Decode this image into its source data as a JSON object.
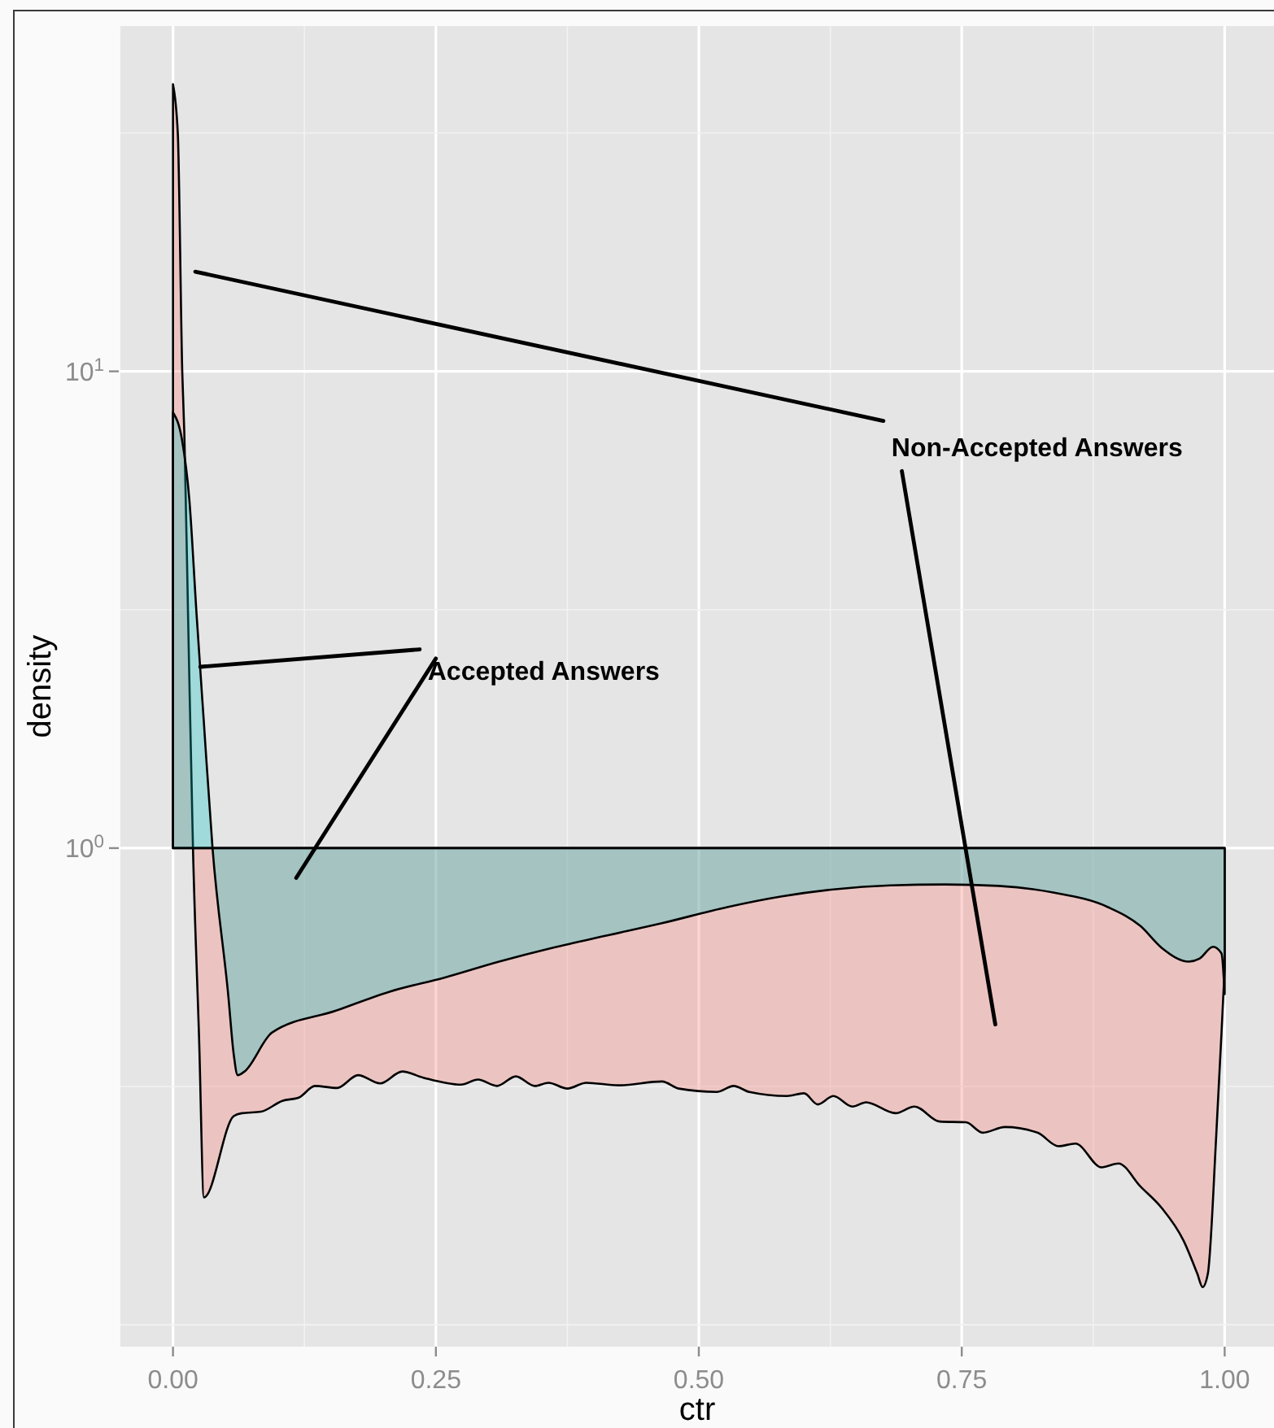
{
  "chart_data": {
    "type": "area",
    "xlabel": "ctr",
    "ylabel": "density",
    "log": "y",
    "grid": true,
    "xlim": [
      -0.05,
      1.05
    ],
    "xticks": [
      {
        "value": 0,
        "label": "0.00"
      },
      {
        "value": 0.25,
        "label": "0.25"
      },
      {
        "value": 0.5,
        "label": "0.50"
      },
      {
        "value": 0.75,
        "label": "0.75"
      },
      {
        "value": 1,
        "label": "1.00"
      }
    ],
    "ylim": [
      0.09,
      53
    ],
    "yticks": [
      {
        "value": 1,
        "label": "10$^{0}$"
      },
      {
        "value": 10,
        "label": "10$^{1}$"
      }
    ],
    "annotations": [
      "Non-Accepted Answers",
      {
        "text": "Accepted Answers",
        "x": 0.026,
        "y": 2.4
      }
    ],
    "series": [
      {
        "color": "#f8766d",
        "x": [
          0,
          0.0046,
          0.0088,
          0.0108,
          0.0147,
          0.019,
          0.0248,
          0.0294,
          0.0577,
          0.0655,
          0.0836,
          0.104,
          0.12,
          0.135,
          0.156,
          0.176,
          0.197,
          0.218,
          0.238,
          0.274,
          0.29,
          0.308,
          0.326,
          0.344,
          0.357,
          0.375,
          0.393,
          0.424,
          0.465,
          0.481,
          0.517,
          0.533,
          0.548,
          0.584,
          0.6,
          0.613,
          0.628,
          0.646,
          0.659,
          0.687,
          0.705,
          0.729,
          0.754,
          0.77,
          0.791,
          0.822,
          0.842,
          0.858,
          0.883,
          0.899,
          0.92,
          0.94,
          0.961,
          0.974,
          0.979,
          0.984,
          0.992,
          0.997,
          1,
          1
        ],
        "values": [
          40,
          31.5,
          10,
          7.4,
          2.8,
          1,
          0.4,
          0.185,
          0.274,
          0.278,
          0.28,
          0.295,
          0.3,
          0.317,
          0.314,
          0.334,
          0.321,
          0.34,
          0.33,
          0.319,
          0.327,
          0.317,
          0.332,
          0.317,
          0.322,
          0.313,
          0.322,
          0.318,
          0.324,
          0.313,
          0.308,
          0.317,
          0.308,
          0.302,
          0.306,
          0.29,
          0.302,
          0.287,
          0.293,
          0.278,
          0.287,
          0.267,
          0.266,
          0.253,
          0.26,
          0.253,
          0.237,
          0.24,
          0.214,
          0.218,
          0.195,
          0.176,
          0.15,
          0.128,
          0.12,
          0.128,
          0.25,
          0.41,
          0.56,
          1
        ]
      },
      {
        "color": "#00bfc4",
        "x": [
          0,
          0.0085,
          0.0155,
          0.0224,
          0.0294,
          0.0376,
          0.0526,
          0.0577,
          0.0615,
          0.068,
          0.094,
          0.155,
          0.206,
          0.258,
          0.31,
          0.361,
          0.413,
          0.464,
          0.527,
          0.579,
          0.63,
          0.682,
          0.734,
          0.785,
          0.837,
          0.889,
          0.92,
          0.94,
          0.966,
          0.976,
          0.989,
          0.997,
          1,
          1
        ],
        "values": [
          8.2,
          7.2,
          5.4,
          3.1,
          1.83,
          1,
          0.49,
          0.37,
          0.334,
          0.34,
          0.41,
          0.456,
          0.5,
          0.535,
          0.578,
          0.618,
          0.656,
          0.695,
          0.752,
          0.792,
          0.82,
          0.835,
          0.839,
          0.833,
          0.807,
          0.752,
          0.686,
          0.618,
          0.578,
          0.586,
          0.621,
          0.601,
          0.494,
          1
        ]
      }
    ]
  }
}
